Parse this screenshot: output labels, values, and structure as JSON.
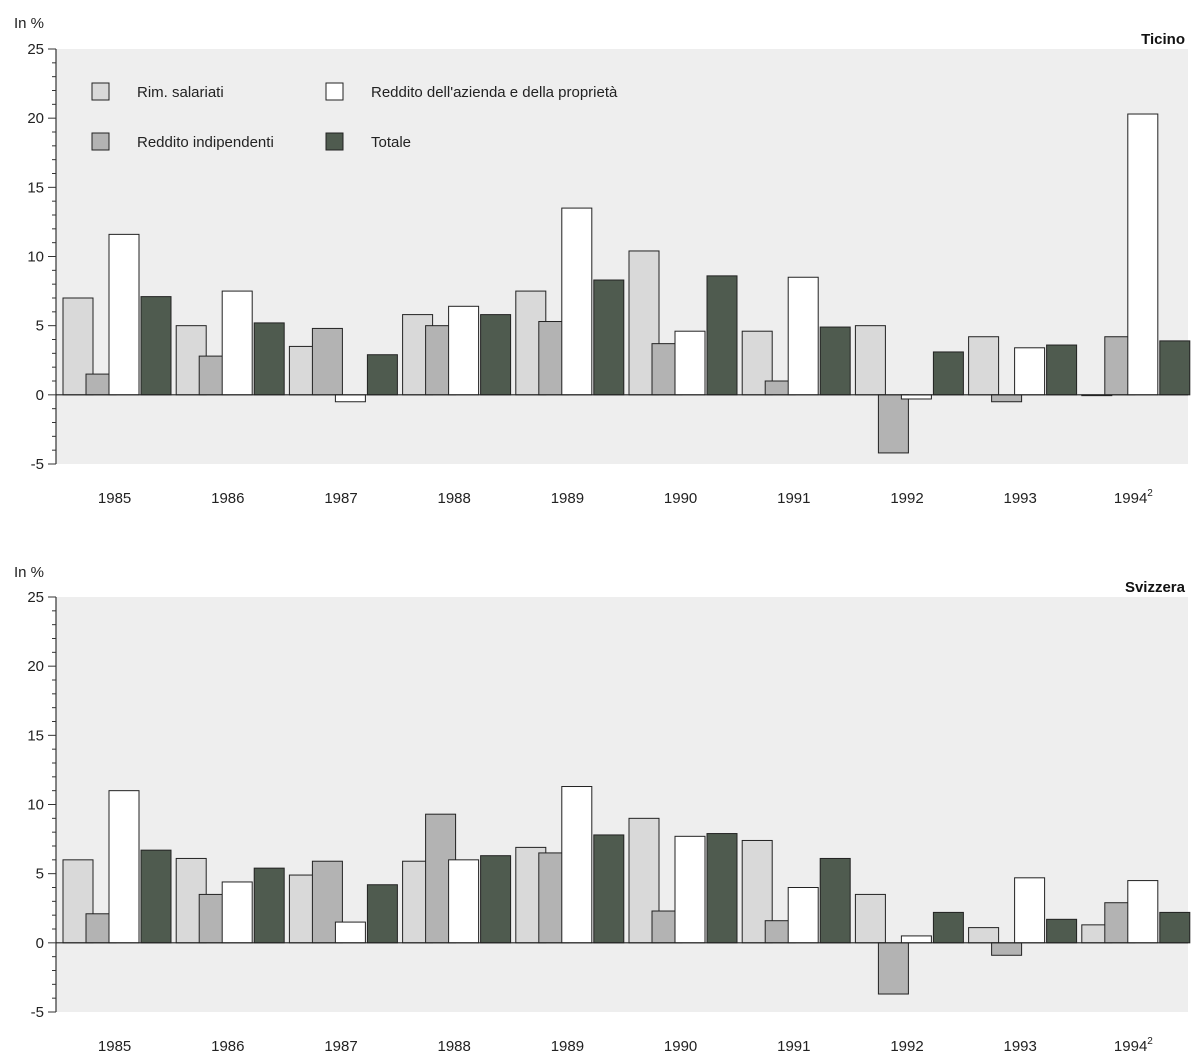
{
  "chart_data": [
    {
      "type": "bar",
      "title": "Ticino",
      "ylabel": "In %",
      "ylim": [
        -5,
        25
      ],
      "yticks": [
        -5,
        0,
        5,
        10,
        15,
        20,
        25
      ],
      "grid": false,
      "legend_placement": "top-left",
      "categories": [
        "1985",
        "1986",
        "1987",
        "1988",
        "1989",
        "1990",
        "1991",
        "1992",
        "1993",
        "1994"
      ],
      "category_superscripts": [
        "",
        "",
        "",
        "",
        "",
        "",
        "",
        "",
        "",
        "2"
      ],
      "series": [
        {
          "name": "Rim. salariati",
          "color": "#d9d9d9",
          "values": [
            7.0,
            5.0,
            3.5,
            5.8,
            7.5,
            10.4,
            4.6,
            5.0,
            4.2,
            0.0
          ]
        },
        {
          "name": "Reddito indipendenti",
          "color": "#b3b3b3",
          "values": [
            1.5,
            2.8,
            4.8,
            5.0,
            5.3,
            3.7,
            1.0,
            -4.2,
            -0.5,
            4.2
          ]
        },
        {
          "name": "Reddito dell'azienda e della proprietà",
          "color": "#ffffff",
          "values": [
            11.6,
            7.5,
            -0.5,
            6.4,
            13.5,
            4.6,
            8.5,
            -0.3,
            3.4,
            20.3
          ]
        },
        {
          "name": "Totale",
          "color": "#4f5b4f",
          "values": [
            7.1,
            5.2,
            2.9,
            5.8,
            8.3,
            8.6,
            4.9,
            3.1,
            3.6,
            3.9
          ]
        }
      ]
    },
    {
      "type": "bar",
      "title": "Svizzera",
      "ylabel": "In %",
      "ylim": [
        -5,
        25
      ],
      "yticks": [
        -5,
        0,
        5,
        10,
        15,
        20,
        25
      ],
      "grid": false,
      "categories": [
        "1985",
        "1986",
        "1987",
        "1988",
        "1989",
        "1990",
        "1991",
        "1992",
        "1993",
        "1994"
      ],
      "category_superscripts": [
        "",
        "",
        "",
        "",
        "",
        "",
        "",
        "",
        "",
        "2"
      ],
      "series": [
        {
          "name": "Rim. salariati",
          "color": "#d9d9d9",
          "values": [
            6.0,
            6.1,
            4.9,
            5.9,
            6.9,
            9.0,
            7.4,
            3.5,
            1.1,
            1.3
          ]
        },
        {
          "name": "Reddito indipendenti",
          "color": "#b3b3b3",
          "values": [
            2.1,
            3.5,
            5.9,
            9.3,
            6.5,
            2.3,
            1.6,
            -3.7,
            -0.9,
            2.9
          ]
        },
        {
          "name": "Reddito dell'azienda e della proprietà",
          "color": "#ffffff",
          "values": [
            11.0,
            4.4,
            1.5,
            6.0,
            11.3,
            7.7,
            4.0,
            0.5,
            4.7,
            4.5
          ]
        },
        {
          "name": "Totale",
          "color": "#4f5b4f",
          "values": [
            6.7,
            5.4,
            4.2,
            6.3,
            7.8,
            7.9,
            6.1,
            2.2,
            1.7,
            2.2
          ]
        }
      ]
    }
  ]
}
